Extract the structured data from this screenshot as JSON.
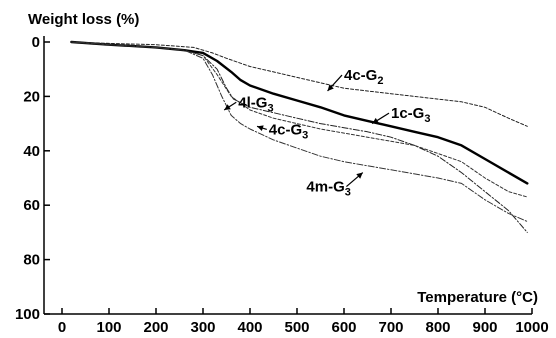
{
  "chart_data": {
    "type": "line",
    "ylabel": "Weight loss (%)",
    "xlabel": "Temperature (°C)",
    "xlim": [
      0,
      1000
    ],
    "ylim": [
      0,
      100
    ],
    "y_inverted": true,
    "grid": false,
    "x_ticks": [
      "0",
      "100",
      "200",
      "300",
      "400",
      "500",
      "600",
      "700",
      "800",
      "900",
      "1000"
    ],
    "y_ticks": [
      "0",
      "20",
      "40",
      "60",
      "80",
      "100"
    ],
    "series": [
      {
        "name": "1c-G3",
        "label_main": "1c-G",
        "label_sub": "3",
        "style": "solid-thick",
        "color": "#000000",
        "label_pos": [
          700,
          28
        ],
        "arrow_to": [
          660,
          30
        ],
        "points": [
          [
            20,
            0
          ],
          [
            100,
            1
          ],
          [
            200,
            2
          ],
          [
            260,
            3
          ],
          [
            300,
            4
          ],
          [
            330,
            7
          ],
          [
            360,
            11
          ],
          [
            380,
            14
          ],
          [
            400,
            16
          ],
          [
            450,
            19
          ],
          [
            500,
            21.5
          ],
          [
            550,
            24
          ],
          [
            600,
            27
          ],
          [
            650,
            29
          ],
          [
            700,
            31
          ],
          [
            750,
            33
          ],
          [
            800,
            35
          ],
          [
            850,
            38
          ],
          [
            900,
            43
          ],
          [
            950,
            48
          ],
          [
            990,
            52
          ]
        ]
      },
      {
        "name": "4c-G2",
        "label_main": "4c-G",
        "label_sub": "2",
        "style": "thin-dashed",
        "color": "#222222",
        "label_pos": [
          600,
          14
        ],
        "arrow_to": [
          565,
          18
        ],
        "points": [
          [
            20,
            0
          ],
          [
            100,
            0.5
          ],
          [
            200,
            1
          ],
          [
            280,
            2
          ],
          [
            320,
            4
          ],
          [
            350,
            6
          ],
          [
            400,
            9
          ],
          [
            450,
            11
          ],
          [
            500,
            13
          ],
          [
            550,
            15
          ],
          [
            600,
            17
          ],
          [
            650,
            18
          ],
          [
            700,
            19
          ],
          [
            750,
            20
          ],
          [
            800,
            21
          ],
          [
            850,
            22
          ],
          [
            900,
            24
          ],
          [
            950,
            28
          ],
          [
            990,
            31
          ]
        ]
      },
      {
        "name": "4l-G3",
        "label_main": "4l-G",
        "label_sub": "3",
        "style": "thin-dashdot",
        "color": "#222222",
        "label_pos": [
          375,
          24
        ],
        "arrow_to": [
          345,
          25
        ],
        "points": [
          [
            20,
            0
          ],
          [
            100,
            1
          ],
          [
            200,
            2
          ],
          [
            260,
            3
          ],
          [
            300,
            5
          ],
          [
            330,
            10
          ],
          [
            350,
            17
          ],
          [
            365,
            21
          ],
          [
            400,
            24
          ],
          [
            450,
            26
          ],
          [
            500,
            28
          ],
          [
            550,
            30
          ],
          [
            600,
            31.5
          ],
          [
            650,
            33
          ],
          [
            700,
            35
          ],
          [
            750,
            38
          ],
          [
            800,
            42
          ],
          [
            850,
            48
          ],
          [
            900,
            55
          ],
          [
            950,
            62
          ],
          [
            990,
            70
          ]
        ]
      },
      {
        "name": "4c-G3",
        "label_main": "4c-G",
        "label_sub": "3",
        "style": "thin-dashed",
        "color": "#333333",
        "label_pos": [
          440,
          34
        ],
        "arrow_to": [
          415,
          31
        ],
        "points": [
          [
            20,
            0
          ],
          [
            100,
            1
          ],
          [
            200,
            2
          ],
          [
            260,
            3
          ],
          [
            300,
            5
          ],
          [
            330,
            12
          ],
          [
            360,
            20
          ],
          [
            400,
            25
          ],
          [
            450,
            28
          ],
          [
            500,
            30
          ],
          [
            550,
            32
          ],
          [
            600,
            33.5
          ],
          [
            650,
            35
          ],
          [
            700,
            36.5
          ],
          [
            750,
            38
          ],
          [
            800,
            41
          ],
          [
            850,
            44
          ],
          [
            900,
            50
          ],
          [
            950,
            55
          ],
          [
            990,
            57
          ]
        ]
      },
      {
        "name": "4m-G3",
        "label_main": "4m-G",
        "label_sub": "3",
        "style": "thin-dashdot",
        "color": "#333333",
        "label_pos": [
          520,
          55
        ],
        "arrow_to": [
          640,
          48
        ],
        "points": [
          [
            20,
            0
          ],
          [
            100,
            1
          ],
          [
            200,
            2
          ],
          [
            260,
            3
          ],
          [
            300,
            6
          ],
          [
            320,
            12
          ],
          [
            340,
            20
          ],
          [
            360,
            27
          ],
          [
            380,
            30
          ],
          [
            400,
            32
          ],
          [
            450,
            36
          ],
          [
            500,
            39
          ],
          [
            550,
            42
          ],
          [
            600,
            44
          ],
          [
            650,
            45.5
          ],
          [
            700,
            47
          ],
          [
            750,
            48.5
          ],
          [
            800,
            50
          ],
          [
            850,
            52
          ],
          [
            900,
            58
          ],
          [
            950,
            63
          ],
          [
            990,
            66
          ]
        ]
      }
    ]
  }
}
